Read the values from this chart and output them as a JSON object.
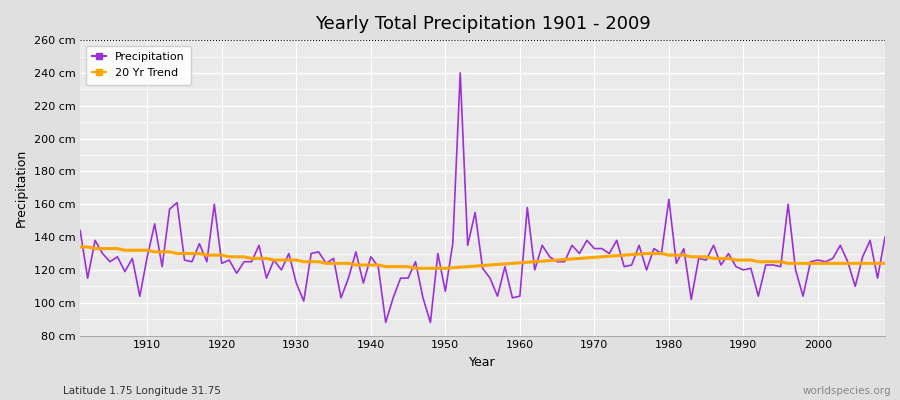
{
  "title": "Yearly Total Precipitation 1901 - 2009",
  "xlabel": "Year",
  "ylabel": "Precipitation",
  "subtitle": "Latitude 1.75 Longitude 31.75",
  "watermark": "worldspecies.org",
  "precip_color": "#9B30D9",
  "trend_color": "#FFA500",
  "fig_bg_color": "#E0E0E0",
  "plot_bg_color": "#EAEAEA",
  "ylim": [
    80,
    260
  ],
  "yticks": [
    80,
    100,
    120,
    140,
    160,
    180,
    200,
    220,
    240,
    260
  ],
  "ytick_labels": [
    "80 cm",
    "100 cm",
    "120 cm",
    "140 cm",
    "160 cm",
    "180 cm",
    "200 cm",
    "220 cm",
    "240 cm",
    "260 cm"
  ],
  "years": [
    1901,
    1902,
    1903,
    1904,
    1905,
    1906,
    1907,
    1908,
    1909,
    1910,
    1911,
    1912,
    1913,
    1914,
    1915,
    1916,
    1917,
    1918,
    1919,
    1920,
    1921,
    1922,
    1923,
    1924,
    1925,
    1926,
    1927,
    1928,
    1929,
    1930,
    1931,
    1932,
    1933,
    1934,
    1935,
    1936,
    1937,
    1938,
    1939,
    1940,
    1941,
    1942,
    1943,
    1944,
    1945,
    1946,
    1947,
    1948,
    1949,
    1950,
    1951,
    1952,
    1953,
    1954,
    1955,
    1956,
    1957,
    1958,
    1959,
    1960,
    1961,
    1962,
    1963,
    1964,
    1965,
    1966,
    1967,
    1968,
    1969,
    1970,
    1971,
    1972,
    1973,
    1974,
    1975,
    1976,
    1977,
    1978,
    1979,
    1980,
    1981,
    1982,
    1983,
    1984,
    1985,
    1986,
    1987,
    1988,
    1989,
    1990,
    1991,
    1992,
    1993,
    1994,
    1995,
    1996,
    1997,
    1998,
    1999,
    2000,
    2001,
    2002,
    2003,
    2004,
    2005,
    2006,
    2007,
    2008,
    2009
  ],
  "precip": [
    144,
    115,
    138,
    130,
    125,
    128,
    119,
    127,
    104,
    128,
    148,
    122,
    157,
    161,
    126,
    125,
    136,
    125,
    160,
    124,
    126,
    118,
    125,
    125,
    135,
    115,
    126,
    120,
    130,
    112,
    101,
    130,
    131,
    124,
    127,
    103,
    115,
    131,
    112,
    128,
    122,
    88,
    103,
    115,
    115,
    125,
    103,
    88,
    130,
    107,
    136,
    240,
    135,
    155,
    121,
    115,
    104,
    122,
    103,
    104,
    158,
    120,
    135,
    128,
    125,
    125,
    135,
    130,
    138,
    133,
    133,
    130,
    138,
    122,
    123,
    135,
    120,
    133,
    130,
    163,
    124,
    133,
    102,
    127,
    126,
    135,
    123,
    130,
    122,
    120,
    121,
    104,
    123,
    123,
    122,
    160,
    120,
    104,
    125,
    126,
    125,
    127,
    135,
    125,
    110,
    128,
    138,
    115,
    140
  ],
  "trend_years": [
    1901,
    1902,
    1903,
    1904,
    1905,
    1906,
    1907,
    1908,
    1909,
    1910,
    1911,
    1912,
    1913,
    1914,
    1915,
    1916,
    1917,
    1918,
    1919,
    1920,
    1921,
    1922,
    1923,
    1924,
    1925,
    1926,
    1927,
    1928,
    1929,
    1930,
    1931,
    1932,
    1933,
    1934,
    1935,
    1936,
    1937,
    1938,
    1939,
    1940,
    1941,
    1942,
    1943,
    1944,
    1945,
    1946,
    1947,
    1948,
    1949,
    1950,
    1977,
    1978,
    1979,
    1980,
    1981,
    1982,
    1983,
    1984,
    1985,
    1986,
    1987,
    1988,
    1989,
    1990,
    1991,
    1992,
    1993,
    1994,
    1995,
    1996,
    1997,
    1998,
    1999,
    2000,
    2001,
    2002,
    2003,
    2004,
    2005,
    2006,
    2007,
    2008,
    2009
  ],
  "trend": [
    134,
    134,
    133,
    133,
    133,
    133,
    132,
    132,
    132,
    132,
    131,
    131,
    131,
    130,
    130,
    130,
    130,
    129,
    129,
    129,
    128,
    128,
    128,
    127,
    127,
    127,
    126,
    126,
    126,
    126,
    125,
    125,
    125,
    124,
    124,
    124,
    124,
    123,
    123,
    123,
    123,
    122,
    122,
    122,
    122,
    121,
    121,
    121,
    121,
    121,
    130,
    130,
    130,
    129,
    129,
    129,
    128,
    128,
    128,
    127,
    127,
    127,
    126,
    126,
    126,
    125,
    125,
    125,
    125,
    124,
    124,
    124,
    124,
    124,
    124,
    124,
    124,
    124,
    124,
    124,
    124,
    124,
    124
  ]
}
